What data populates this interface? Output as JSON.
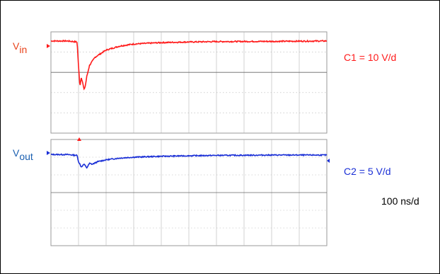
{
  "colors": {
    "ch1": "#ff1a1a",
    "ch2": "#1a2fd6",
    "vin_label": "#e8421a",
    "vout_label": "#1a5fb0",
    "grid": "#b5b5b5"
  },
  "labels": {
    "vin": {
      "main": "V",
      "sub": "in"
    },
    "vout": {
      "main": "V",
      "sub": "out"
    },
    "c1_scale": "C1 = 10 V/d",
    "c2_scale": "C2 = 5 V/d",
    "timebase": "100 ns/d"
  },
  "chart_data": [
    {
      "type": "line",
      "panel": "top",
      "title": "",
      "xlabel": "",
      "ylabel": "",
      "x_divisions": 10,
      "y_divisions": 5,
      "x_unit": "div",
      "y_unit": "div",
      "grid": true,
      "series": [
        {
          "name": "Vin",
          "x": [
            0,
            0.6,
            0.95,
            1.0,
            1.05,
            1.1,
            1.15,
            1.2,
            1.25,
            1.3,
            1.4,
            1.6,
            2.0,
            2.5,
            3.0,
            4.0,
            5.0,
            6.0,
            8.0,
            10.0
          ],
          "y": [
            4.55,
            4.55,
            4.5,
            3.3,
            2.3,
            2.75,
            2.5,
            2.15,
            2.35,
            2.8,
            3.35,
            3.75,
            4.1,
            4.3,
            4.4,
            4.47,
            4.5,
            4.52,
            4.53,
            4.55
          ]
        }
      ]
    },
    {
      "type": "line",
      "panel": "bottom",
      "title": "",
      "xlabel": "",
      "ylabel": "",
      "x_divisions": 10,
      "y_divisions": 6,
      "x_unit": "div",
      "y_unit": "div",
      "grid": true,
      "series": [
        {
          "name": "Vout",
          "x": [
            0,
            0.6,
            0.95,
            1.0,
            1.1,
            1.2,
            1.3,
            1.4,
            1.5,
            1.7,
            2.0,
            2.5,
            3.0,
            4.0,
            5.0,
            6.0,
            8.0,
            10.0
          ],
          "y": [
            5.15,
            5.15,
            5.1,
            4.75,
            4.45,
            4.6,
            4.4,
            4.65,
            4.6,
            4.75,
            4.85,
            4.95,
            5.0,
            5.05,
            5.08,
            5.1,
            5.12,
            5.12
          ]
        }
      ]
    }
  ]
}
